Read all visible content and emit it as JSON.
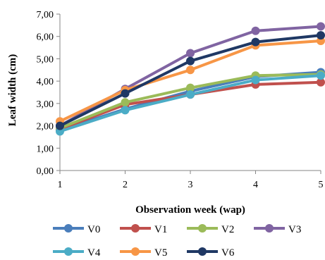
{
  "chart_data": {
    "type": "line",
    "title": "",
    "xlabel": "Observation week (wap)",
    "ylabel": "Leaf width (cm)",
    "x": [
      1,
      2,
      3,
      4,
      5
    ],
    "x_tick_labels": [
      "1",
      "2",
      "3",
      "4",
      "5"
    ],
    "ylim": [
      0,
      7
    ],
    "y_tick_labels": [
      "0,00",
      "1,00",
      "2,00",
      "3,00",
      "4,00",
      "5,00",
      "6,00",
      "7,00"
    ],
    "y_ticks": [
      0,
      1,
      2,
      3,
      4,
      5,
      6,
      7
    ],
    "grid": false,
    "legend_position": "bottom",
    "series": [
      {
        "name": "V0",
        "color": "#4a7ebb",
        "values": [
          1.8,
          2.75,
          3.55,
          4.2,
          4.4
        ]
      },
      {
        "name": "V1",
        "color": "#c0504d",
        "values": [
          1.85,
          2.95,
          3.4,
          3.85,
          3.95
        ]
      },
      {
        "name": "V2",
        "color": "#9bbb59",
        "values": [
          1.9,
          3.05,
          3.7,
          4.25,
          4.3
        ]
      },
      {
        "name": "V3",
        "color": "#8064a2",
        "values": [
          2.0,
          3.65,
          5.25,
          6.25,
          6.45
        ]
      },
      {
        "name": "V4",
        "color": "#4bacc6",
        "values": [
          1.75,
          2.7,
          3.4,
          4.05,
          4.25
        ]
      },
      {
        "name": "V5",
        "color": "#f79646",
        "values": [
          2.2,
          3.6,
          4.5,
          5.6,
          5.8
        ]
      },
      {
        "name": "V6",
        "color": "#1f3864",
        "values": [
          2.0,
          3.45,
          4.9,
          5.75,
          6.05
        ]
      }
    ]
  }
}
